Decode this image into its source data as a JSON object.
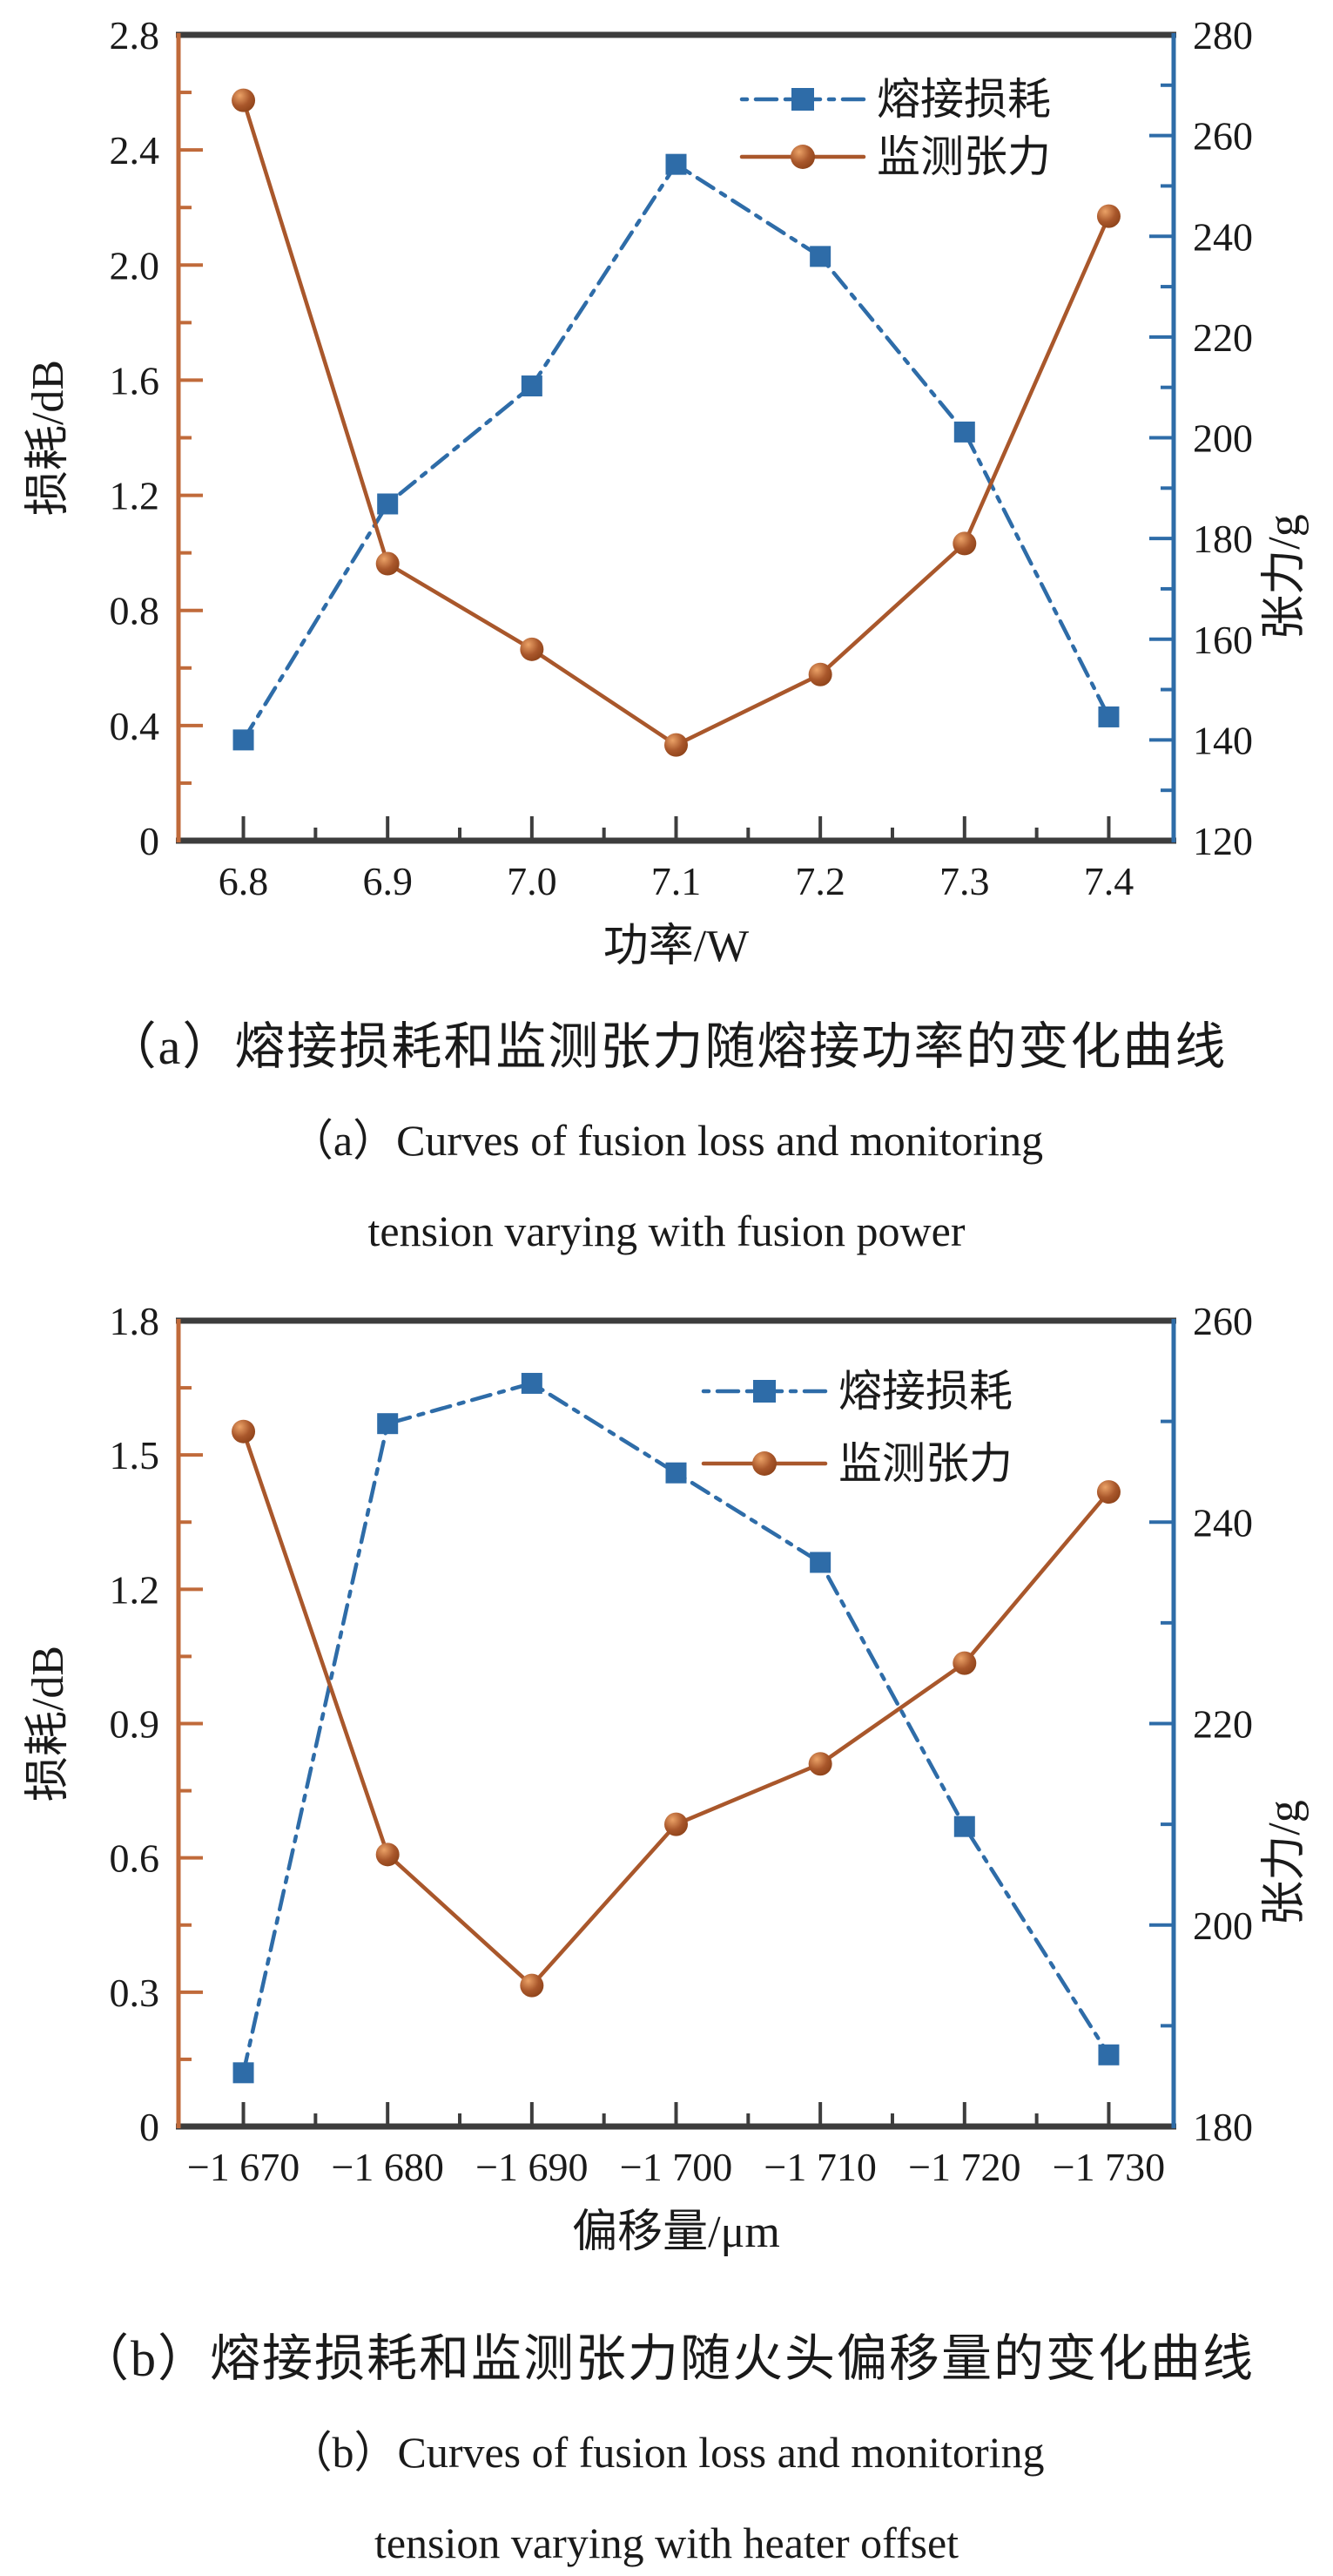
{
  "figure": {
    "colors": {
      "loss": "#2e6ca8",
      "tension": "#a9572b",
      "axis_dark": "#3d3d3d",
      "left_spine": "#c06a3a",
      "right_spine": "#2e6ca8",
      "text": "#1a1a1a",
      "sphere_highlight": "#eba267",
      "sphere_dark": "#8a4017"
    },
    "legend_labels": {
      "loss": "熔接损耗",
      "tension": "监测张力"
    }
  },
  "chart_data": [
    {
      "id": "a",
      "type": "line",
      "xlabel": "功率/W",
      "ylabel_left": "损耗/dB",
      "ylabel_right": "张力/g",
      "x_tick_labels": [
        "6.8",
        "6.9",
        "7.0",
        "7.1",
        "7.2",
        "7.3",
        "7.4"
      ],
      "left_axis": {
        "min": 0,
        "max": 2.8,
        "major": 0.4,
        "minor": 0.2,
        "labels": [
          "0",
          "0.4",
          "0.8",
          "1.2",
          "1.6",
          "2.0",
          "2.4",
          "2.8"
        ]
      },
      "right_axis": {
        "min": 120,
        "max": 280,
        "major": 20,
        "minor": 10,
        "labels": [
          "120",
          "140",
          "160",
          "180",
          "200",
          "220",
          "240",
          "260",
          "280"
        ]
      },
      "series": [
        {
          "name": "熔接损耗",
          "axis": "left",
          "line": "dashdot",
          "marker": "square",
          "values": [
            0.35,
            1.17,
            1.58,
            2.35,
            2.03,
            1.42,
            0.43
          ]
        },
        {
          "name": "监测张力",
          "axis": "right",
          "line": "solid",
          "marker": "sphere",
          "values": [
            267,
            175,
            158,
            139,
            153,
            179,
            244
          ]
        }
      ],
      "legend_pos": {
        "x": 852,
        "rows": [
          114,
          180
        ],
        "line_len": 140,
        "label_dx": 155
      },
      "captions": [
        "（a）熔接损耗和监测张力随熔接功率的变化曲线",
        "（a）Curves of fusion loss and monitoring",
        "tension varying with fusion power"
      ]
    },
    {
      "id": "b",
      "type": "line",
      "xlabel": "偏移量/μm",
      "ylabel_left": "损耗/dB",
      "ylabel_right": "张力/g",
      "x_tick_labels": [
        "−1 670",
        "−1 680",
        "−1 690",
        "−1 700",
        "−1 710",
        "−1 720",
        "−1 730"
      ],
      "left_axis": {
        "min": 0,
        "max": 1.8,
        "major": 0.3,
        "minor": 0.15,
        "labels": [
          "0",
          "0.3",
          "0.6",
          "0.9",
          "1.2",
          "1.5",
          "1.8"
        ]
      },
      "right_axis": {
        "min": 180,
        "max": 260,
        "major": 20,
        "minor": 10,
        "labels": [
          "180",
          "200",
          "220",
          "240",
          "260"
        ]
      },
      "series": [
        {
          "name": "熔接损耗",
          "axis": "left",
          "line": "dashdot",
          "marker": "square",
          "values": [
            0.12,
            1.57,
            1.66,
            1.46,
            1.26,
            0.67,
            0.16
          ]
        },
        {
          "name": "监测张力",
          "axis": "right",
          "line": "solid",
          "marker": "sphere",
          "values": [
            249,
            207,
            194,
            210,
            216,
            226,
            243
          ]
        }
      ],
      "legend_pos": {
        "x": 808,
        "rows": [
          121,
          204
        ],
        "line_len": 140,
        "label_dx": 155
      },
      "captions": [
        "（b）熔接损耗和监测张力随火头偏移量的变化曲线",
        "（b）Curves of fusion loss and monitoring",
        "tension varying with heater offset"
      ]
    }
  ]
}
